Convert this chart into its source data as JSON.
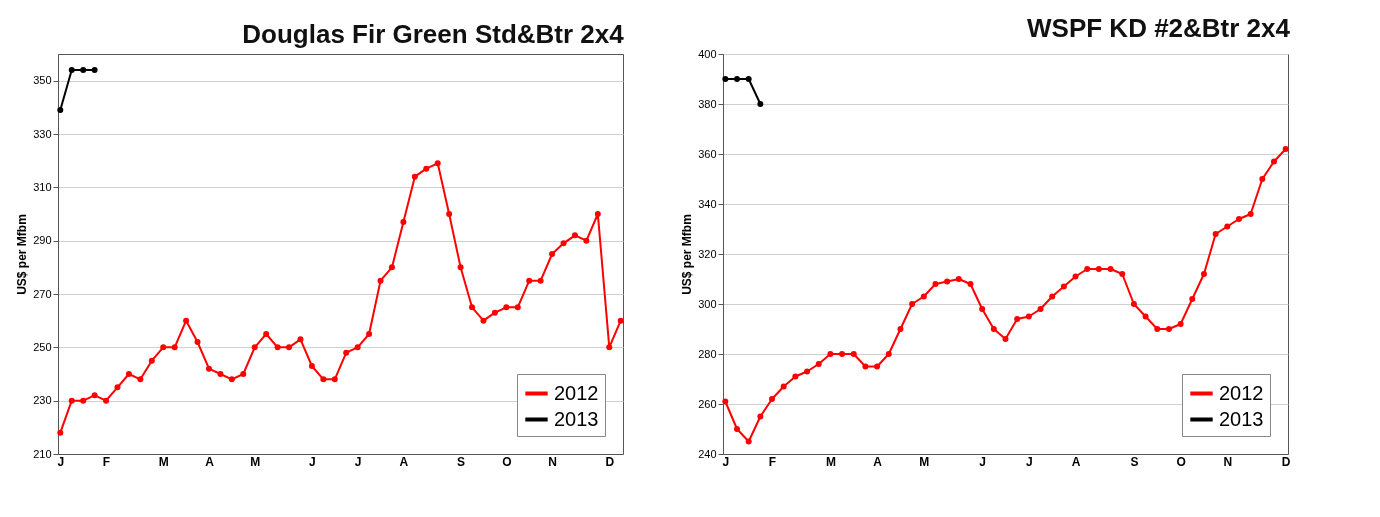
{
  "chart_data": [
    {
      "type": "line",
      "title": "Douglas Fir Green Std&Btr 2x4",
      "ylabel": "US$ per Mfbm",
      "categories": [
        "J",
        null,
        null,
        null,
        "F",
        null,
        null,
        null,
        null,
        "M",
        null,
        null,
        null,
        "A",
        null,
        null,
        null,
        "M",
        null,
        null,
        null,
        null,
        "J",
        null,
        null,
        null,
        "J",
        null,
        null,
        null,
        "A",
        null,
        null,
        null,
        null,
        "S",
        null,
        null,
        null,
        "O",
        null,
        null,
        null,
        "N",
        null,
        null,
        null,
        null,
        "D",
        null
      ],
      "series": [
        {
          "name": "2012",
          "color": "#ff0000",
          "values": [
            218,
            230,
            230,
            232,
            230,
            235,
            240,
            238,
            245,
            250,
            250,
            260,
            252,
            242,
            240,
            238,
            240,
            250,
            255,
            250,
            250,
            253,
            243,
            238,
            238,
            248,
            250,
            255,
            275,
            280,
            297,
            314,
            317,
            319,
            300,
            280,
            265,
            260,
            263,
            265,
            265,
            275,
            275,
            285,
            289,
            292,
            290,
            300,
            250,
            260
          ]
        },
        {
          "name": "2013",
          "color": "#000000",
          "values": [
            339,
            354,
            354,
            354,
            null,
            null,
            null,
            null,
            null,
            null,
            null,
            null,
            null,
            null,
            null,
            null,
            null,
            null,
            null,
            null,
            null,
            null,
            null,
            null,
            null,
            null,
            null,
            null,
            null,
            null,
            null,
            null,
            null,
            null,
            null,
            null,
            null,
            null,
            null,
            null,
            null,
            null,
            null,
            null,
            null,
            null,
            null,
            null,
            null,
            null
          ]
        }
      ],
      "ylim": [
        210,
        360
      ],
      "yticks": [
        210,
        230,
        250,
        270,
        290,
        310,
        330,
        350
      ],
      "grid": "y",
      "legend": "bottom right",
      "marker": "circle",
      "line_style": "solid"
    },
    {
      "type": "line",
      "title": "WSPF KD #2&Btr 2x4",
      "ylabel": "US$ per Mfbm",
      "categories": [
        "J",
        null,
        null,
        null,
        "F",
        null,
        null,
        null,
        null,
        "M",
        null,
        null,
        null,
        "A",
        null,
        null,
        null,
        "M",
        null,
        null,
        null,
        null,
        "J",
        null,
        null,
        null,
        "J",
        null,
        null,
        null,
        "A",
        null,
        null,
        null,
        null,
        "S",
        null,
        null,
        null,
        "O",
        null,
        null,
        null,
        "N",
        null,
        null,
        null,
        null,
        "D"
      ],
      "series": [
        {
          "name": "2012",
          "color": "#ff0000",
          "values": [
            261,
            250,
            245,
            255,
            262,
            267,
            271,
            273,
            276,
            280,
            280,
            280,
            275,
            275,
            280,
            290,
            300,
            303,
            308,
            309,
            310,
            308,
            298,
            290,
            286,
            294,
            295,
            298,
            303,
            307,
            311,
            314,
            314,
            314,
            312,
            300,
            295,
            290,
            290,
            292,
            302,
            312,
            328,
            331,
            334,
            336,
            350,
            357,
            362
          ]
        },
        {
          "name": "2013",
          "color": "#000000",
          "values": [
            390,
            390,
            390,
            380,
            null,
            null,
            null,
            null,
            null,
            null,
            null,
            null,
            null,
            null,
            null,
            null,
            null,
            null,
            null,
            null,
            null,
            null,
            null,
            null,
            null,
            null,
            null,
            null,
            null,
            null,
            null,
            null,
            null,
            null,
            null,
            null,
            null,
            null,
            null,
            null,
            null,
            null,
            null,
            null,
            null,
            null,
            null,
            null,
            null
          ]
        }
      ],
      "ylim": [
        240,
        400
      ],
      "yticks": [
        240,
        260,
        280,
        300,
        320,
        340,
        360,
        380,
        400
      ],
      "grid": "y",
      "legend": "bottom right",
      "marker": "circle",
      "line_style": "solid"
    }
  ]
}
